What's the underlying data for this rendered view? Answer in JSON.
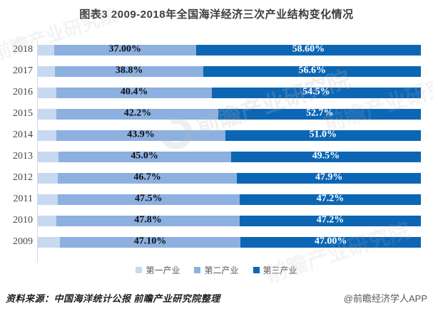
{
  "title": "图表3  2009-2018年全国海洋经济三次产业结构变化情况",
  "chart_data": {
    "type": "bar",
    "orientation": "horizontal",
    "stacked": true,
    "xlim": [
      0,
      100
    ],
    "grid": false,
    "legend_position": "bottom",
    "categories": [
      "2018",
      "2017",
      "2016",
      "2015",
      "2014",
      "2013",
      "2012",
      "2011",
      "2010",
      "2009"
    ],
    "series": [
      {
        "name": "第一产业",
        "key": "primary",
        "color": "#c7d9f0",
        "values": [
          4.4,
          4.6,
          5.1,
          5.1,
          5.1,
          5.5,
          5.4,
          5.3,
          5.0,
          5.9
        ],
        "labels": [
          "",
          "",
          "",
          "",
          "",
          "",
          "",
          "",
          "",
          ""
        ]
      },
      {
        "name": "第二产业",
        "key": "secondary",
        "color": "#8cb0e0",
        "values": [
          37.0,
          38.8,
          40.4,
          42.2,
          43.9,
          45.0,
          46.7,
          47.5,
          47.8,
          47.1
        ],
        "labels": [
          "37.00%",
          "38.8%",
          "40.4%",
          "42.2%",
          "43.9%",
          "45.0%",
          "46.7%",
          "47.5%",
          "47.8%",
          "47.10%"
        ]
      },
      {
        "name": "第三产业",
        "key": "tertiary",
        "color": "#0c66b4",
        "values": [
          58.6,
          56.6,
          54.5,
          52.7,
          51.0,
          49.5,
          47.9,
          47.2,
          47.2,
          47.0
        ],
        "labels": [
          "58.60%",
          "56.6%",
          "54.5%",
          "52.7%",
          "51.0%",
          "49.5%",
          "47.9%",
          "47.2%",
          "47.2%",
          "47.00%"
        ]
      }
    ]
  },
  "footer": {
    "source": "资料来源：中国海洋统计公报 前瞻产业研究院整理",
    "credit": "@前瞻经济学人APP"
  },
  "watermark": {
    "brand": "前瞻产业研究院"
  },
  "colors": {
    "primary": "#c7d9f0",
    "secondary": "#8cb0e0",
    "tertiary": "#0c66b4",
    "axis": "#d9d9d9"
  }
}
